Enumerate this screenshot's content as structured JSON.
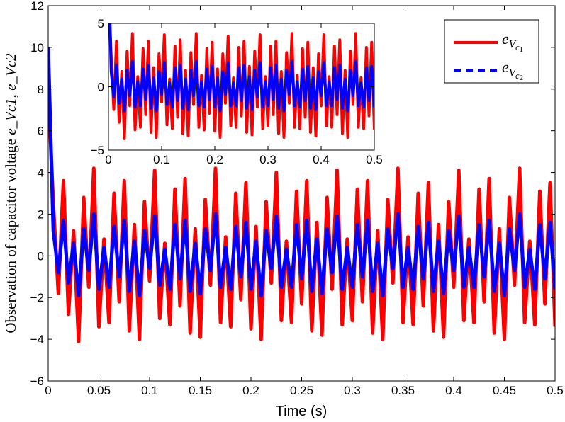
{
  "chart_data": [
    {
      "type": "line",
      "xlabel": "Time (s)",
      "ylabel": {
        "text": "Observation of capacitor voltage",
        "symbols": [
          "e_Vc1",
          "e_Vc2"
        ]
      },
      "xlim": [
        0,
        0.5
      ],
      "ylim": [
        -6,
        12
      ],
      "xticks": [
        "0",
        "0.05",
        "0.1",
        "0.15",
        "0.2",
        "0.25",
        "0.3",
        "0.35",
        "0.4",
        "0.45",
        "0.5"
      ],
      "yticks": [
        "−6",
        "−4",
        "−2",
        "0",
        "2",
        "4",
        "6",
        "8",
        "10",
        "12"
      ],
      "grid": false,
      "legend": "top-right",
      "x": [
        0,
        0.005,
        0.01,
        0.015,
        0.02,
        0.025,
        0.03,
        0.035,
        0.04,
        0.045,
        0.05,
        0.055,
        0.06,
        0.065,
        0.07,
        0.075,
        0.08,
        0.085,
        0.09,
        0.095,
        0.1,
        0.105,
        0.11,
        0.115,
        0.12,
        0.125,
        0.13,
        0.135,
        0.14,
        0.145,
        0.15,
        0.155,
        0.16,
        0.165,
        0.17,
        0.175,
        0.18,
        0.185,
        0.19,
        0.195,
        0.2,
        0.205,
        0.21,
        0.215,
        0.22,
        0.225,
        0.23,
        0.235,
        0.24,
        0.245,
        0.25,
        0.255,
        0.26,
        0.265,
        0.27,
        0.275,
        0.28,
        0.285,
        0.29,
        0.295,
        0.3,
        0.305,
        0.31,
        0.315,
        0.32,
        0.325,
        0.33,
        0.335,
        0.34,
        0.345,
        0.35,
        0.355,
        0.36,
        0.365,
        0.37,
        0.375,
        0.38,
        0.385,
        0.39,
        0.395,
        0.4,
        0.405,
        0.41,
        0.415,
        0.42,
        0.425,
        0.43,
        0.435,
        0.44,
        0.445,
        0.45,
        0.455,
        0.46,
        0.465,
        0.47,
        0.475,
        0.48,
        0.485,
        0.49,
        0.495,
        0.5
      ],
      "series": [
        {
          "name": "e_Vc1",
          "color": "#ff0000",
          "style": "solid",
          "values": [
            8,
            2.5,
            -1.8,
            3.6,
            -2.8,
            1.2,
            -4.1,
            2.8,
            -1.5,
            4.2,
            -3.4,
            0.8,
            -3.2,
            3.0,
            -2.2,
            3.6,
            -3.6,
            1.5,
            -4.0,
            2.6,
            -1.2,
            4.1,
            -3.0,
            0.6,
            -3.3,
            3.2,
            -2.4,
            3.7,
            -3.7,
            1.3,
            -3.9,
            2.7,
            -1.4,
            4.2,
            -3.2,
            0.9,
            -3.4,
            3.0,
            -2.1,
            3.5,
            -3.5,
            1.4,
            -4.0,
            2.6,
            -1.3,
            4.0,
            -3.1,
            0.7,
            -3.2,
            3.1,
            -2.3,
            3.6,
            -3.6,
            1.6,
            -3.8,
            2.8,
            -1.6,
            4.1,
            -3.3,
            0.8,
            -3.1,
            3.2,
            -2.2,
            3.6,
            -3.7,
            1.2,
            -4.0,
            2.7,
            -1.3,
            4.2,
            -3.2,
            0.9,
            -3.3,
            3.0,
            -2.4,
            3.5,
            -3.6,
            1.5,
            -3.9,
            2.6,
            -1.5,
            4.1,
            -3.1,
            0.8,
            -3.2,
            3.2,
            -2.2,
            3.7,
            -3.7,
            1.3,
            -4.0,
            2.8,
            -1.4,
            4.2,
            -3.2,
            0.7,
            -3.3,
            3.1,
            -2.3,
            3.5,
            -3.4
          ]
        },
        {
          "name": "e_Vc2",
          "color": "#0000ff",
          "style": "dashed",
          "values": [
            10,
            1.2,
            -0.8,
            1.7,
            -1.3,
            0.6,
            -1.9,
            1.3,
            -0.7,
            2.0,
            -1.6,
            0.4,
            -1.5,
            1.4,
            -1.0,
            1.7,
            -1.7,
            0.7,
            -1.9,
            1.2,
            -0.6,
            1.9,
            -1.4,
            0.3,
            -1.6,
            1.5,
            -1.1,
            1.7,
            -1.7,
            0.6,
            -1.8,
            1.3,
            -0.7,
            2.0,
            -1.5,
            0.4,
            -1.6,
            1.4,
            -1.0,
            1.6,
            -1.6,
            0.7,
            -1.9,
            1.2,
            -0.6,
            1.9,
            -1.5,
            0.3,
            -1.5,
            1.5,
            -1.1,
            1.7,
            -1.7,
            0.8,
            -1.8,
            1.3,
            -0.8,
            1.9,
            -1.6,
            0.4,
            -1.5,
            1.5,
            -1.0,
            1.7,
            -1.7,
            0.6,
            -1.9,
            1.3,
            -0.6,
            2.0,
            -1.5,
            0.4,
            -1.6,
            1.4,
            -1.1,
            1.6,
            -1.7,
            0.7,
            -1.8,
            1.2,
            -0.7,
            1.9,
            -1.5,
            0.4,
            -1.5,
            1.5,
            -1.0,
            1.7,
            -1.7,
            0.6,
            -1.9,
            1.3,
            -0.7,
            2.0,
            -1.5,
            0.3,
            -1.6,
            1.5,
            -1.1,
            1.6,
            -1.6
          ]
        }
      ]
    },
    {
      "type": "line",
      "role": "inset",
      "xlim": [
        0,
        0.5
      ],
      "ylim": [
        -5,
        5
      ],
      "xticks": [
        "0",
        "0.1",
        "0.2",
        "0.3",
        "0.4",
        "0.5"
      ],
      "yticks": [
        "−5",
        "0",
        "5"
      ],
      "grid": false,
      "series_ref": "same as main chart"
    }
  ]
}
